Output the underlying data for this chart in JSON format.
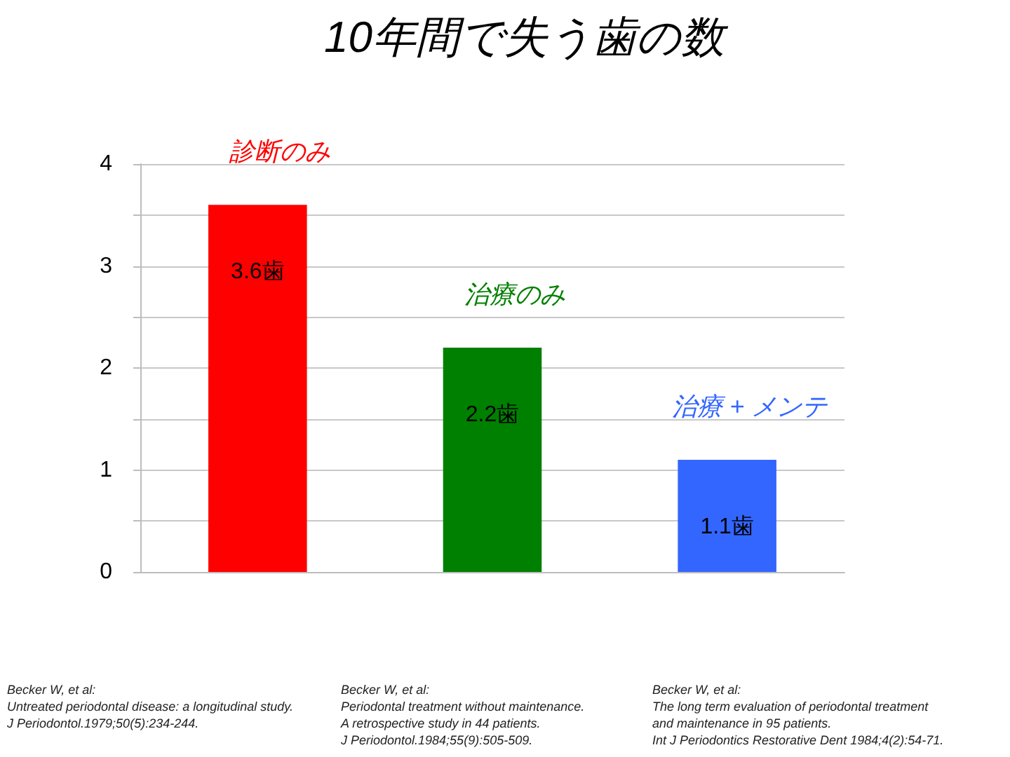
{
  "chart_data": {
    "type": "bar",
    "title": "10年間で失う歯の数",
    "categories": [
      "診断のみ",
      "治療のみ",
      "治療 + メンテ"
    ],
    "values": [
      3.6,
      2.2,
      1.1
    ],
    "colors": [
      "#ff0000",
      "#008000",
      "#3366ff"
    ],
    "value_labels": [
      "3.6歯",
      "2.2歯",
      "1.1歯"
    ],
    "ylim": [
      0,
      4
    ],
    "yticks": [
      0,
      {
        "value": 0.5,
        "label": null
      },
      1,
      {
        "value": 1.5,
        "label": null
      },
      2,
      {
        "value": 2.5,
        "label": null
      },
      3,
      {
        "value": 3.5,
        "label": null
      },
      4
    ],
    "grid": true,
    "annotations": [
      "Becker W, et al:\nUntreated periodontal disease: a longitudinal study.\nJ Periodontol.1979;50(5):234-244.",
      "Becker W, et al:\nPeriodontal treatment without maintenance.\nA retrospective study in 44 patients.\nJ Periodontol.1984;55(9):505-509.",
      "Becker W, et al:\nThe long term evaluation of periodontal treatment\nand maintenance in 95 patients.\nInt J Periodontics Restorative Dent 1984;4(2):54-71."
    ]
  }
}
